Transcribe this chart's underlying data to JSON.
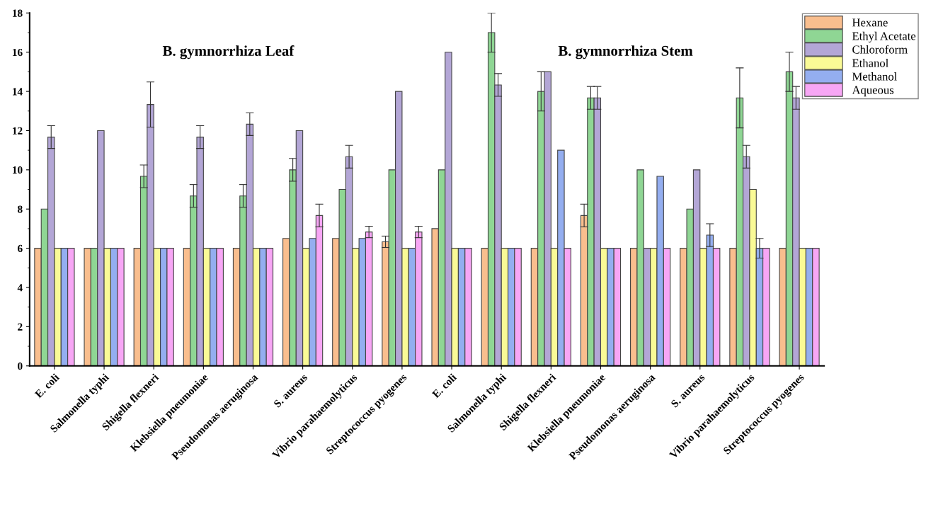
{
  "chart_data": {
    "type": "bar",
    "categories": [
      "E. coli",
      "Salmonella typhi",
      "Shigella flexneri",
      "Klebsiella pneumoniae",
      "Pseudomonas aeruginosa",
      "S. aureus",
      "Vibrio parahaemolyticus",
      "Streptococcus pyogenes",
      "E. coli",
      "Salmonella typhi",
      "Shigella flexneri",
      "Klebsiella pneumoniae",
      "Pseudomonas aeruginosa",
      "S. aureus",
      "Vibrio parahaemolyticus",
      "Streptococcus pyogenes"
    ],
    "series": [
      {
        "name": "Hexane",
        "color": "#f9be8e",
        "values": [
          6,
          6,
          6,
          6,
          6,
          6.5,
          6.5,
          6.33,
          7,
          6,
          6,
          7.67,
          6,
          6,
          6,
          6
        ],
        "errors": [
          null,
          null,
          null,
          null,
          null,
          null,
          null,
          0.29,
          null,
          null,
          null,
          0.58,
          null,
          null,
          null,
          null
        ]
      },
      {
        "name": "Ethyl Acetate",
        "color": "#8fd694",
        "values": [
          8,
          6,
          9.67,
          8.67,
          8.67,
          10,
          9,
          10,
          10,
          17,
          14,
          13.67,
          10,
          8,
          13.67,
          15
        ],
        "errors": [
          null,
          null,
          0.58,
          0.58,
          0.58,
          0.58,
          null,
          null,
          null,
          1,
          1,
          0.58,
          null,
          null,
          1.53,
          1
        ]
      },
      {
        "name": "Chloroform",
        "color": "#b3a6d6",
        "values": [
          11.67,
          12,
          13.33,
          11.67,
          12.33,
          12,
          10.67,
          14,
          16,
          14.33,
          15,
          13.67,
          6,
          10,
          10.67,
          13.67
        ],
        "errors": [
          0.58,
          null,
          1.15,
          0.58,
          0.58,
          null,
          0.58,
          null,
          null,
          0.58,
          null,
          0.58,
          null,
          null,
          0.58,
          0.58
        ]
      },
      {
        "name": "Ethanol",
        "color": "#fafa96",
        "values": [
          6,
          6,
          6,
          6,
          6,
          6,
          6,
          6,
          6,
          6,
          6,
          6,
          6,
          6,
          9,
          6
        ]
      },
      {
        "name": "Methanol",
        "color": "#94aef0",
        "values": [
          6,
          6,
          6,
          6,
          6,
          6.5,
          6.5,
          6,
          6,
          6,
          11,
          6,
          9.67,
          6.67,
          6,
          6
        ],
        "errors": [
          null,
          null,
          null,
          null,
          null,
          null,
          null,
          null,
          null,
          null,
          null,
          null,
          null,
          0.58,
          0.5,
          null
        ]
      },
      {
        "name": "Aqueous",
        "color": "#f7a6f5",
        "values": [
          6,
          6,
          6,
          6,
          6,
          7.67,
          6.83,
          6.83,
          6,
          6,
          6,
          6,
          6,
          6,
          6,
          6
        ],
        "errors": [
          null,
          null,
          null,
          null,
          null,
          0.58,
          0.29,
          0.29,
          null,
          null,
          null,
          null,
          null,
          null,
          null,
          null
        ]
      }
    ],
    "ylim": [
      0,
      18
    ],
    "yticks": [
      0,
      2,
      4,
      6,
      8,
      10,
      12,
      14,
      16,
      18
    ],
    "grid": false,
    "legend": "top right",
    "annotations": [
      "B. gymnorrhiza Leaf",
      "B. gymnorrhiza Stem"
    ]
  }
}
